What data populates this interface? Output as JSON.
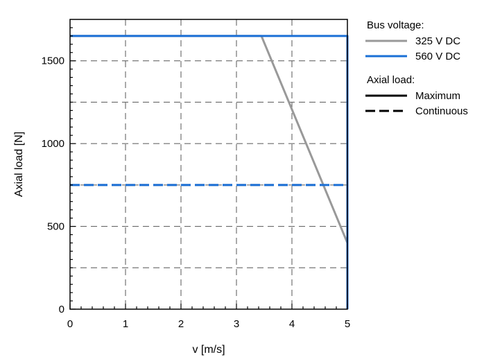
{
  "chart_data": {
    "type": "line",
    "xlabel": "v [m/s]",
    "ylabel": "Axial load [N]",
    "xlim": [
      0,
      5
    ],
    "ylim": [
      0,
      1750
    ],
    "x_ticks": [
      0,
      1,
      2,
      3,
      4,
      5
    ],
    "y_ticks": [
      0,
      500,
      1000,
      1500
    ],
    "y_minor_gridlines": [
      250,
      750,
      1250
    ],
    "grid": "dashed",
    "legend_placement": "outside-right",
    "series": [
      {
        "name": "325 V DC",
        "style": "solid",
        "color": "#999999",
        "x": [
          0,
          3.45,
          5
        ],
        "y": [
          1650,
          1650,
          400
        ]
      },
      {
        "name": "325 V DC",
        "style": "dashed",
        "color": "#999999",
        "x": [
          0,
          4.55
        ],
        "y": [
          750,
          750
        ]
      },
      {
        "name": "560 V DC",
        "style": "solid",
        "color": "#1a6fd6",
        "x": [
          0,
          5,
          5
        ],
        "y": [
          1650,
          1650,
          0
        ]
      },
      {
        "name": "560 V DC",
        "style": "dashed",
        "color": "#1a6fd6",
        "x": [
          0,
          5
        ],
        "y": [
          750,
          750
        ]
      }
    ],
    "legend": {
      "group1_title": "Bus voltage:",
      "group1_items": [
        {
          "label": "325 V DC",
          "color": "#999999",
          "style": "solid"
        },
        {
          "label": "560 V DC",
          "color": "#1a6fd6",
          "style": "solid"
        }
      ],
      "group2_title": "Axial load:",
      "group2_items": [
        {
          "label": "Maximum",
          "color": "#000000",
          "style": "solid"
        },
        {
          "label": "Continuous",
          "color": "#000000",
          "style": "dashed"
        }
      ]
    }
  }
}
